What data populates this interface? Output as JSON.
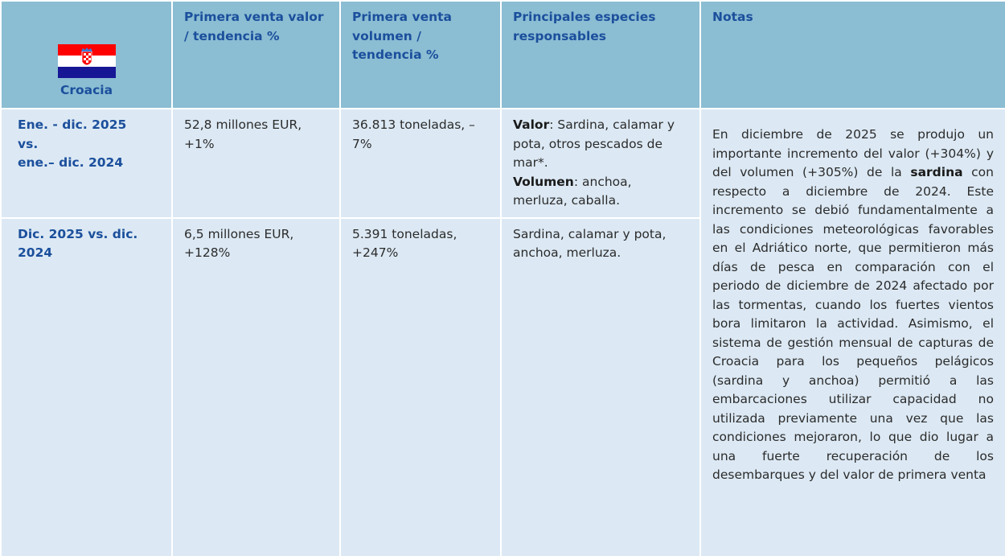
{
  "table": {
    "header": {
      "country": "Croacia",
      "columns": [
        "Primera venta valor / tendencia %",
        "Primera venta volumen / tendencia %",
        "Principales especies responsables",
        "Notas"
      ]
    },
    "rows": [
      {
        "period": [
          "Ene. - dic. 2025",
          "vs.",
          "ene.– dic. 2024"
        ],
        "value": "52,8 millones EUR, +1%",
        "volume": "36.813 toneladas, –7%",
        "species": [
          {
            "label": "Valor",
            "text": ": Sardina, calamar y pota, otros pescados de mar*."
          },
          {
            "label": "Volumen",
            "text": ": anchoa, merluza, caballa."
          }
        ]
      },
      {
        "period": [
          "Dic. 2025 vs. dic. 2024"
        ],
        "value": "6,5 millones EUR, +128%",
        "volume": "5.391 toneladas, +247%",
        "species": [
          {
            "text": "Sardina, calamar y pota, anchoa, merluza."
          }
        ]
      }
    ],
    "notes": {
      "before": "En diciembre de 2025 se produjo un importante incremento del valor (+304%) y del volumen (+305%) de la",
      "bold": "sardina",
      "after": "con respecto a diciembre de 2024. Este incremento se debió fundamentalmente a las condiciones meteorológicas favorables en el Adriático norte, que permitieron más días de pesca en comparación con el periodo de diciembre de 2024 afectado por las tormentas, cuando los fuertes vientos bora limitaron la actividad. Asimismo, el sistema de gestión mensual de capturas de Croacia para los pequeños pelágicos (sardina y anchoa) permitió a las embarcaciones utilizar capacidad no utilizada previamente una vez que las condiciones mejoraron, lo que dio lugar a una fuerte recuperación de los desembarques y del valor de primera venta"
    }
  }
}
